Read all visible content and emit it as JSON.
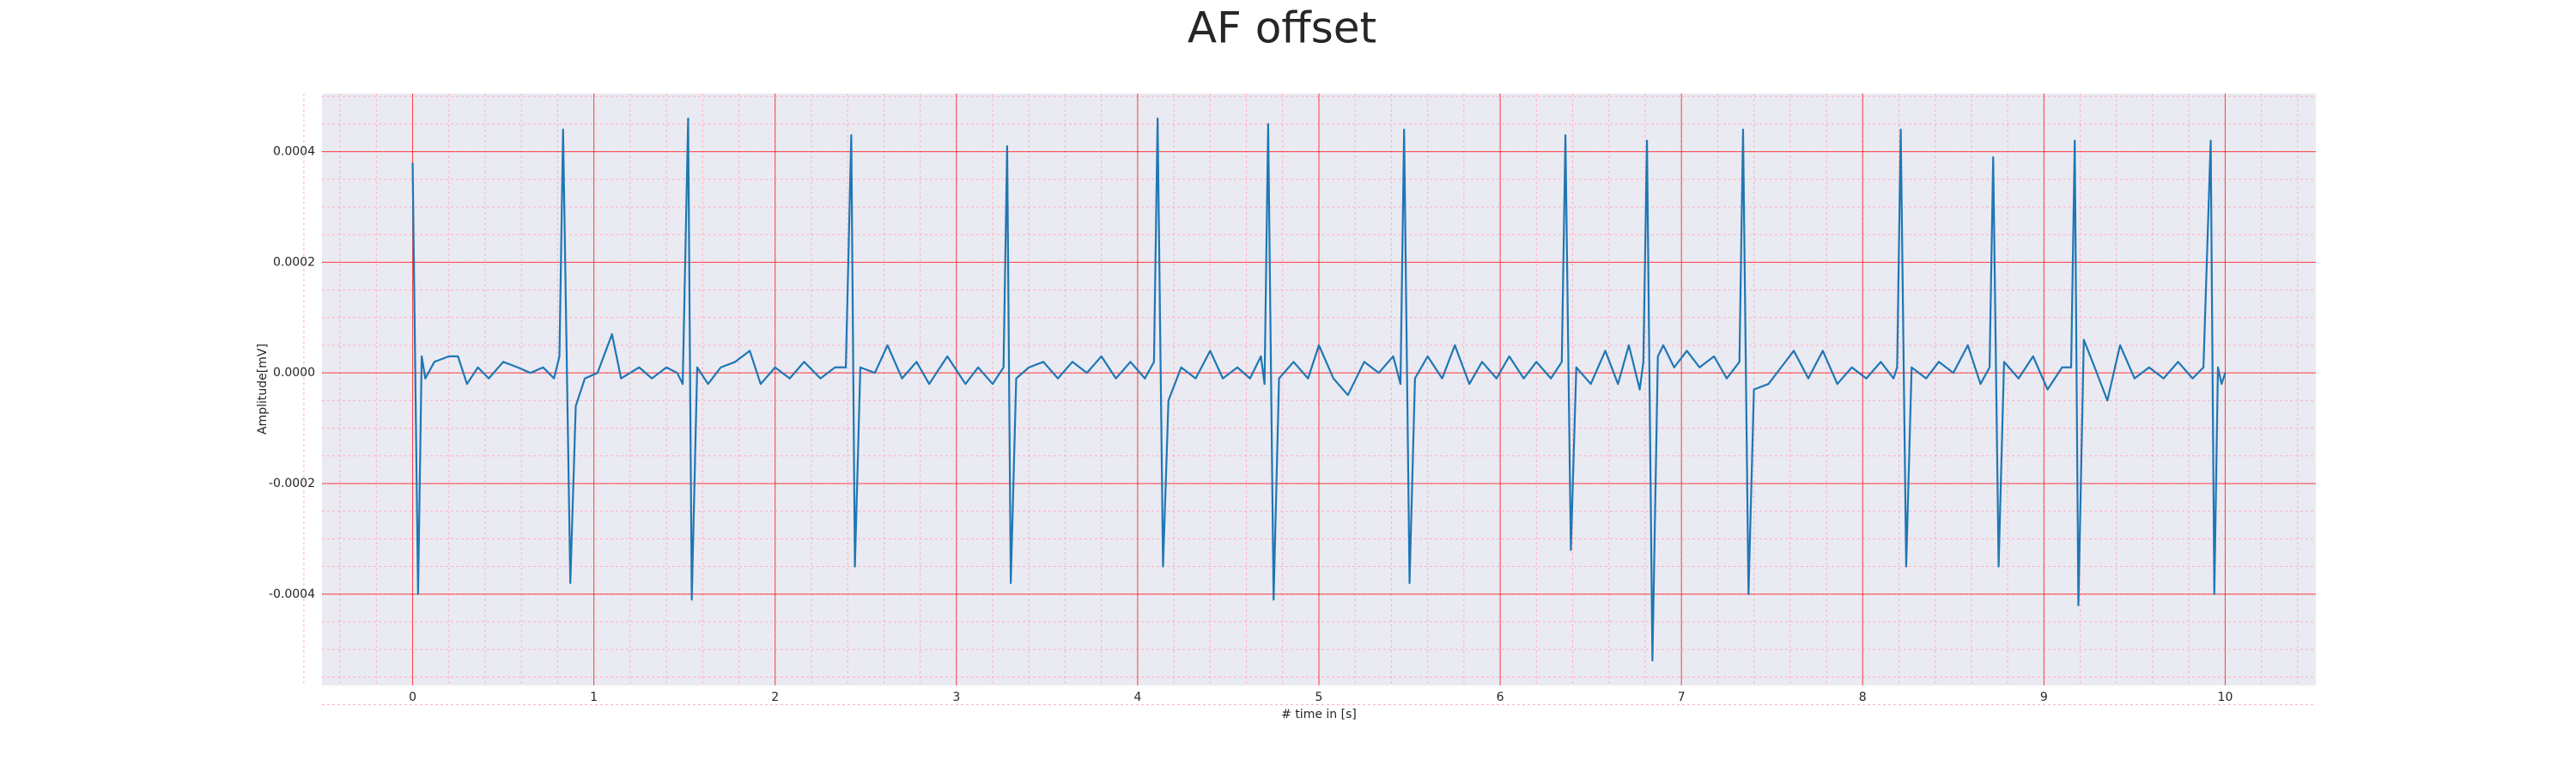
{
  "chart_data": {
    "type": "line",
    "title": "AF offset",
    "x_label": "# time in [s]",
    "y_label": "Amplitude[mV]",
    "color": "#1f77b4",
    "background": "#eaeaf2",
    "grid": true,
    "grid_color": "#ff0000",
    "minor_grid": true,
    "minor_grid_color": "#ffb0c0",
    "xlim": [
      -0.5,
      10.5
    ],
    "xticks": [
      0,
      1,
      2,
      3,
      4,
      5,
      6,
      7,
      8,
      9,
      10
    ],
    "ylim": [
      -0.000565,
      0.000505
    ],
    "yticks": [
      -0.0004,
      -0.0002,
      {
        "value": 0,
        "label": "0.0000"
      },
      0.0002,
      0.0004
    ],
    "x": [
      0,
      0.03,
      0.05,
      0.07,
      0.12,
      0.2,
      0.25,
      0.3,
      0.36,
      0.42,
      0.5,
      0.58,
      0.65,
      0.72,
      0.78,
      0.81,
      0.83,
      0.87,
      0.9,
      0.95,
      1.02,
      1.1,
      1.15,
      1.25,
      1.32,
      1.4,
      1.46,
      1.49,
      1.52,
      1.54,
      1.57,
      1.63,
      1.7,
      1.78,
      1.86,
      1.92,
      2.0,
      2.08,
      2.16,
      2.25,
      2.33,
      2.39,
      2.42,
      2.44,
      2.47,
      2.55,
      2.62,
      2.7,
      2.78,
      2.85,
      2.95,
      3.05,
      3.12,
      3.2,
      3.26,
      3.28,
      3.3,
      3.33,
      3.4,
      3.48,
      3.56,
      3.64,
      3.72,
      3.8,
      3.88,
      3.96,
      4.04,
      4.09,
      4.11,
      4.14,
      4.17,
      4.24,
      4.32,
      4.4,
      4.47,
      4.55,
      4.62,
      4.68,
      4.7,
      4.72,
      4.75,
      4.78,
      4.86,
      4.94,
      5.0,
      5.08,
      5.16,
      5.25,
      5.33,
      5.41,
      5.45,
      5.47,
      5.5,
      5.53,
      5.6,
      5.68,
      5.75,
      5.83,
      5.9,
      5.98,
      6.05,
      6.13,
      6.2,
      6.28,
      6.34,
      6.36,
      6.39,
      6.42,
      6.5,
      6.58,
      6.65,
      6.71,
      6.77,
      6.79,
      6.81,
      6.84,
      6.87,
      6.9,
      6.96,
      7.03,
      7.1,
      7.18,
      7.25,
      7.32,
      7.34,
      7.37,
      7.4,
      7.48,
      7.55,
      7.62,
      7.7,
      7.78,
      7.86,
      7.94,
      8.02,
      8.1,
      8.17,
      8.19,
      8.21,
      8.24,
      8.27,
      8.35,
      8.42,
      8.5,
      8.58,
      8.65,
      8.7,
      8.72,
      8.75,
      8.78,
      8.86,
      8.94,
      9.02,
      9.1,
      9.15,
      9.17,
      9.19,
      9.22,
      9.28,
      9.35,
      9.42,
      9.5,
      9.58,
      9.66,
      9.74,
      9.82,
      9.88,
      9.92,
      9.94,
      9.96,
      9.98,
      10.0
    ],
    "values": [
      0.00038,
      -0.0004,
      3e-05,
      -1e-05,
      2e-05,
      3e-05,
      3e-05,
      -2e-05,
      1e-05,
      -1e-05,
      2e-05,
      1e-05,
      0,
      1e-05,
      -1e-05,
      3e-05,
      0.00044,
      -0.00038,
      -6e-05,
      -1e-05,
      0,
      7e-05,
      -1e-05,
      1e-05,
      -1e-05,
      1e-05,
      0,
      -2e-05,
      0.00046,
      -0.00041,
      1e-05,
      -2e-05,
      1e-05,
      2e-05,
      4e-05,
      -2e-05,
      1e-05,
      -1e-05,
      2e-05,
      -1e-05,
      1e-05,
      1e-05,
      0.00043,
      -0.00035,
      1e-05,
      0,
      5e-05,
      -1e-05,
      2e-05,
      -2e-05,
      3e-05,
      -2e-05,
      1e-05,
      -2e-05,
      1e-05,
      0.00041,
      -0.00038,
      -1e-05,
      1e-05,
      2e-05,
      -1e-05,
      2e-05,
      0,
      3e-05,
      -1e-05,
      2e-05,
      -1e-05,
      2e-05,
      0.00046,
      -0.00035,
      -5e-05,
      1e-05,
      -1e-05,
      4e-05,
      -1e-05,
      1e-05,
      -1e-05,
      3e-05,
      -2e-05,
      0.00045,
      -0.00041,
      -1e-05,
      2e-05,
      -1e-05,
      5e-05,
      -1e-05,
      -4e-05,
      2e-05,
      0,
      3e-05,
      -2e-05,
      0.00044,
      -0.00038,
      -1e-05,
      3e-05,
      -1e-05,
      5e-05,
      -2e-05,
      2e-05,
      -1e-05,
      3e-05,
      -1e-05,
      2e-05,
      -1e-05,
      2e-05,
      0.00043,
      -0.00032,
      1e-05,
      -2e-05,
      4e-05,
      -2e-05,
      5e-05,
      -3e-05,
      2e-05,
      0.00042,
      -0.00052,
      3e-05,
      5e-05,
      1e-05,
      4e-05,
      1e-05,
      3e-05,
      -1e-05,
      2e-05,
      0.00044,
      -0.0004,
      -3e-05,
      -2e-05,
      1e-05,
      4e-05,
      -1e-05,
      4e-05,
      -2e-05,
      1e-05,
      -1e-05,
      2e-05,
      -1e-05,
      1e-05,
      0.00044,
      -0.00035,
      1e-05,
      -1e-05,
      2e-05,
      0,
      5e-05,
      -2e-05,
      1e-05,
      0.00039,
      -0.00035,
      2e-05,
      -1e-05,
      3e-05,
      -3e-05,
      1e-05,
      1e-05,
      0.00042,
      -0.00042,
      6e-05,
      1e-05,
      -5e-05,
      5e-05,
      -1e-05,
      1e-05,
      -1e-05,
      2e-05,
      -1e-05,
      1e-05,
      0.00042,
      -0.0004,
      1e-05,
      -2e-05,
      0
    ]
  }
}
